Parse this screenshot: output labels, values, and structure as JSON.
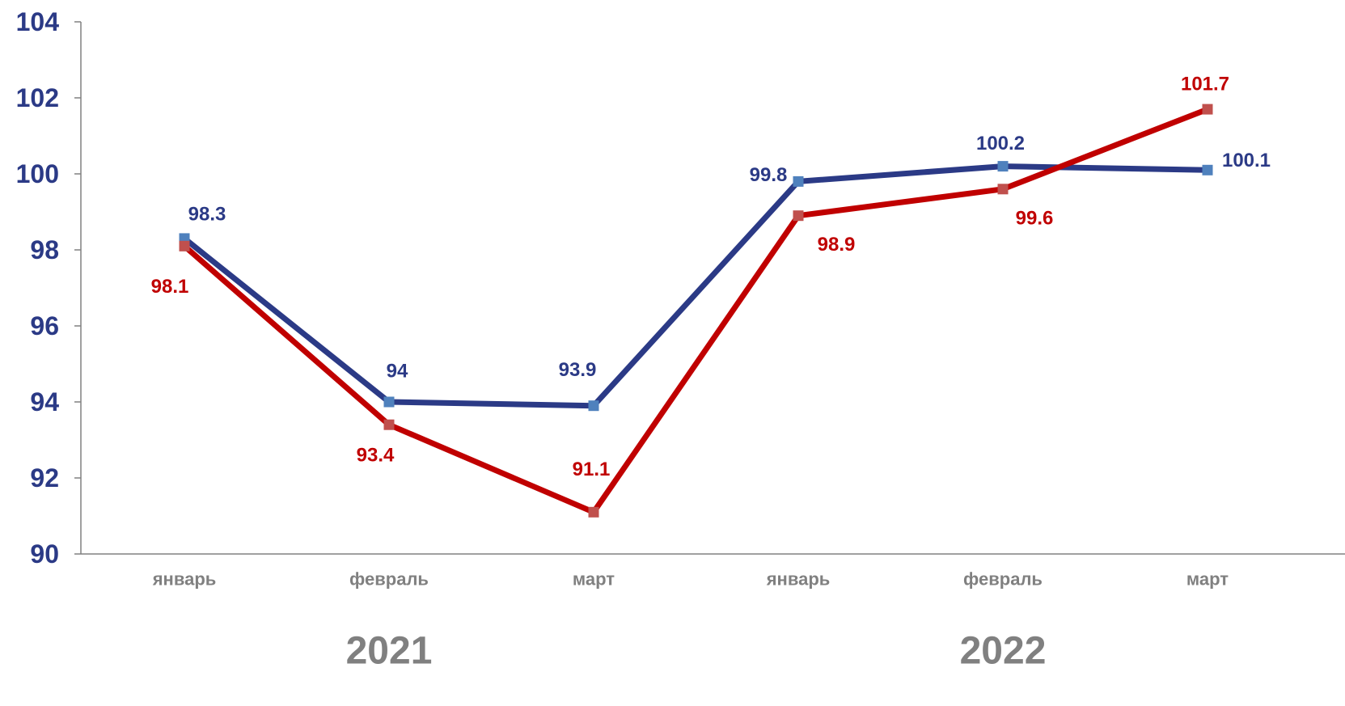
{
  "chart_data": {
    "type": "line",
    "categories": [
      "январь",
      "февраль",
      "март",
      "январь",
      "февраль",
      "март"
    ],
    "groups": [
      {
        "label": "2021",
        "from": 0,
        "to": 2
      },
      {
        "label": "2022",
        "from": 3,
        "to": 5
      }
    ],
    "series": [
      {
        "values": [
          98.3,
          94,
          93.9,
          99.8,
          100.2,
          100.1
        ],
        "labels": [
          "98.3",
          "94",
          "93.9",
          "99.8",
          "100.2",
          "100.1"
        ],
        "color": "#2B3A86",
        "marker_color": "#4F81BD"
      },
      {
        "values": [
          98.1,
          93.4,
          91.1,
          98.9,
          99.6,
          101.7
        ],
        "labels": [
          "98.1",
          "93.4",
          "91.1",
          "98.9",
          "99.6",
          "101.7"
        ],
        "color": "#C00000",
        "marker_color": "#C0504D"
      }
    ],
    "ylim": [
      90,
      104
    ],
    "yticks": [
      90,
      92,
      94,
      96,
      98,
      100,
      102,
      104
    ],
    "ytick_labels": [
      "90",
      "92",
      "94",
      "96",
      "98",
      "100",
      "102",
      "104"
    ],
    "legend": "none",
    "grid": false,
    "colors": {
      "axis": "#808080",
      "ytick_text": "#2B3A86",
      "xtick_text": "#808080"
    }
  }
}
